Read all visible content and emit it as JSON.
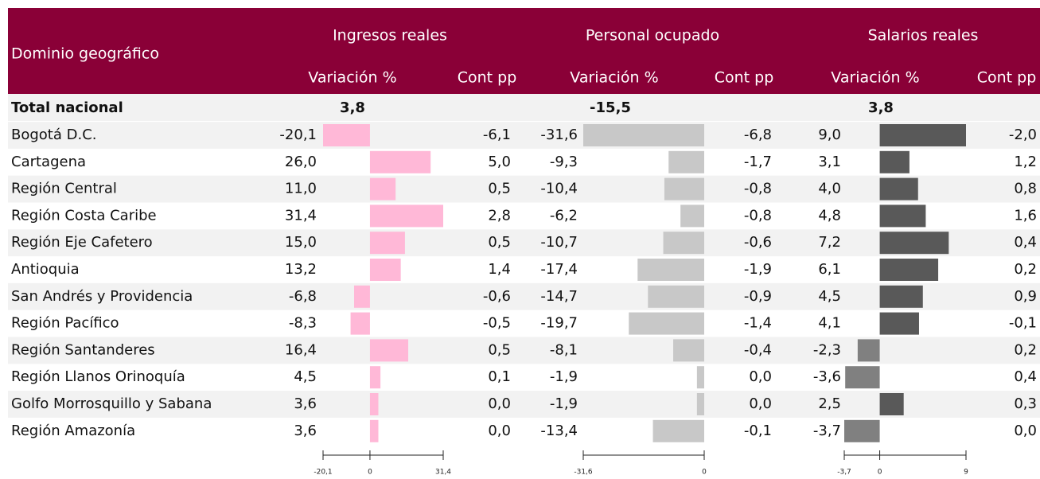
{
  "header": {
    "domain": "Dominio geográfico",
    "groups": [
      {
        "title": "Ingresos reales",
        "sub": [
          "Variación %",
          "Cont pp"
        ]
      },
      {
        "title": "Personal ocupado",
        "sub": [
          "Variación %",
          "Cont pp"
        ]
      },
      {
        "title": "Salarios reales",
        "sub": [
          "Variación %",
          "Cont pp"
        ]
      }
    ]
  },
  "total": {
    "name": "Total nacional",
    "values": [
      "3,8",
      "-15,5",
      "3,8"
    ]
  },
  "rows": [
    {
      "name": "Bogotá D.C.",
      "cells": [
        [
          "-20,1",
          "-6,1"
        ],
        [
          "-31,6",
          "-6,8"
        ],
        [
          "9,0",
          "-2,0"
        ]
      ]
    },
    {
      "name": "Cartagena",
      "cells": [
        [
          "26,0",
          "5,0"
        ],
        [
          "-9,3",
          "-1,7"
        ],
        [
          "3,1",
          "1,2"
        ]
      ]
    },
    {
      "name": "Región Central",
      "cells": [
        [
          "11,0",
          "0,5"
        ],
        [
          "-10,4",
          "-0,8"
        ],
        [
          "4,0",
          "0,8"
        ]
      ]
    },
    {
      "name": "Región Costa Caribe",
      "cells": [
        [
          "31,4",
          "2,8"
        ],
        [
          "-6,2",
          "-0,8"
        ],
        [
          "4,8",
          "1,6"
        ]
      ]
    },
    {
      "name": "Región Eje Cafetero",
      "cells": [
        [
          "15,0",
          "0,5"
        ],
        [
          "-10,7",
          "-0,6"
        ],
        [
          "7,2",
          "0,4"
        ]
      ]
    },
    {
      "name": "Antioquia",
      "cells": [
        [
          "13,2",
          "1,4"
        ],
        [
          "-17,4",
          "-1,9"
        ],
        [
          "6,1",
          "0,2"
        ]
      ]
    },
    {
      "name": "San Andrés y Providencia",
      "cells": [
        [
          "-6,8",
          "-0,6"
        ],
        [
          "-14,7",
          "-0,9"
        ],
        [
          "4,5",
          "0,9"
        ]
      ]
    },
    {
      "name": "Región Pacífico",
      "cells": [
        [
          "-8,3",
          "-0,5"
        ],
        [
          "-19,7",
          "-1,4"
        ],
        [
          "4,1",
          "-0,1"
        ]
      ]
    },
    {
      "name": "Región Santanderes",
      "cells": [
        [
          "16,4",
          "0,5"
        ],
        [
          "-8,1",
          "-0,4"
        ],
        [
          "-2,3",
          "0,2"
        ]
      ]
    },
    {
      "name": "Región Llanos Orinoquía",
      "cells": [
        [
          "4,5",
          "0,1"
        ],
        [
          "-1,9",
          "0,0"
        ],
        [
          "-3,6",
          "0,4"
        ]
      ]
    },
    {
      "name": "Golfo Morrosquillo y Sabana",
      "cells": [
        [
          "3,6",
          "0,0"
        ],
        [
          "-1,9",
          "0,0"
        ],
        [
          "2,5",
          "0,3"
        ]
      ]
    },
    {
      "name": "Región Amazonía",
      "cells": [
        [
          "3,6",
          "0,0"
        ],
        [
          "-13,4",
          "-0,1"
        ],
        [
          "-3,7",
          "0,0"
        ]
      ]
    }
  ],
  "scales": [
    {
      "ticks": [
        {
          "value": -20.1,
          "label": "-20,1"
        },
        0,
        {
          "value": 31.4,
          "label": "31,4"
        }
      ],
      "pos_color": "#ffb8d7",
      "neg_color": "#ffb8d7"
    },
    {
      "ticks": [
        {
          "value": -31.6,
          "label": "-31,6"
        },
        0
      ],
      "pos_color": "#c8c8c8",
      "neg_color": "#c8c8c8"
    },
    {
      "ticks": [
        {
          "value": -3.7,
          "label": "-3,7"
        },
        0,
        9
      ],
      "pos_color": "#595959",
      "neg_color": "#808080"
    }
  ]
}
